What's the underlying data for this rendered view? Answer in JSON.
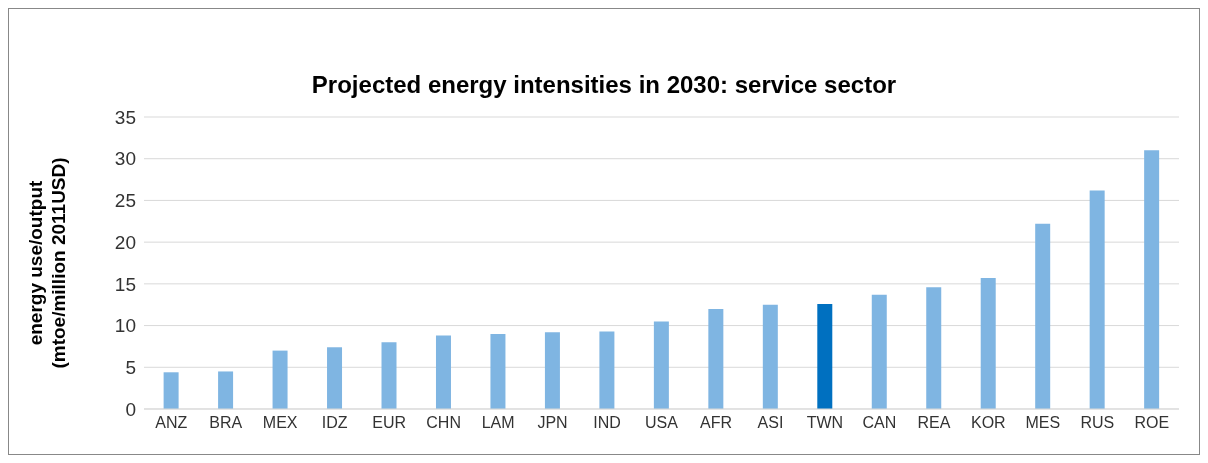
{
  "chart_data": {
    "type": "bar",
    "title": "Projected energy intensities in 2030: service sector",
    "ylabel": "energy use/output\n(mtoe/million 2011USD)",
    "categories": [
      "ANZ",
      "BRA",
      "MEX",
      "IDZ",
      "EUR",
      "CHN",
      "LAM",
      "JPN",
      "IND",
      "USA",
      "AFR",
      "ASI",
      "TWN",
      "CAN",
      "REA",
      "KOR",
      "MES",
      "RUS",
      "ROE"
    ],
    "values": [
      4.4,
      4.5,
      7.0,
      7.4,
      8.0,
      8.8,
      9.0,
      9.2,
      9.3,
      10.5,
      12.0,
      12.5,
      12.6,
      13.7,
      14.6,
      15.7,
      22.2,
      26.2,
      31.0
    ],
    "colors": [
      "#7fb5e2",
      "#7fb5e2",
      "#7fb5e2",
      "#7fb5e2",
      "#7fb5e2",
      "#7fb5e2",
      "#7fb5e2",
      "#7fb5e2",
      "#7fb5e2",
      "#7fb5e2",
      "#7fb5e2",
      "#7fb5e2",
      "#0070c0",
      "#7fb5e2",
      "#7fb5e2",
      "#7fb5e2",
      "#7fb5e2",
      "#7fb5e2",
      "#7fb5e2"
    ],
    "ylim": [
      0,
      35
    ],
    "yticks": [
      0,
      5,
      10,
      15,
      20,
      25,
      30,
      35
    ],
    "grid": "y"
  }
}
